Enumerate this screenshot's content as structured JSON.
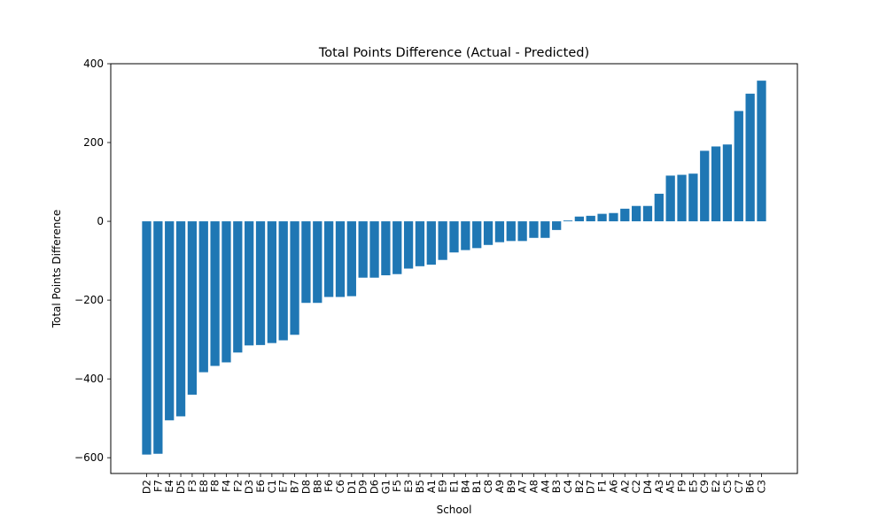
{
  "chart_data": {
    "type": "bar",
    "title": "Total Points Difference (Actual - Predicted)",
    "xlabel": "School",
    "ylabel": "Total Points Difference",
    "ylim": [
      -640,
      400
    ],
    "yticks": [
      400,
      200,
      0,
      -200,
      -400,
      -600
    ],
    "ytick_labels": [
      "400",
      "200",
      "0",
      "−200",
      "−400",
      "−600"
    ],
    "grid": false,
    "bar_color": "#1f77b4",
    "categories": [
      "D2",
      "F7",
      "E4",
      "D5",
      "F3",
      "E8",
      "F8",
      "F4",
      "F2",
      "D3",
      "E6",
      "C1",
      "E7",
      "B7",
      "D8",
      "B8",
      "F6",
      "C6",
      "D1",
      "D9",
      "D6",
      "G1",
      "F5",
      "E3",
      "B5",
      "A1",
      "E9",
      "E1",
      "B4",
      "B1",
      "C8",
      "A9",
      "B9",
      "A7",
      "A8",
      "A4",
      "B3",
      "C4",
      "B2",
      "D7",
      "F1",
      "A6",
      "A2",
      "C2",
      "D4",
      "A3",
      "A5",
      "F9",
      "E5",
      "C9",
      "E2",
      "C5",
      "C7",
      "B6",
      "C3"
    ],
    "values": [
      -592,
      -590,
      -505,
      -495,
      -440,
      -383,
      -367,
      -358,
      -333,
      -315,
      -314,
      -309,
      -302,
      -288,
      -207,
      -207,
      -192,
      -192,
      -190,
      -143,
      -143,
      -137,
      -134,
      -120,
      -114,
      -110,
      -98,
      -79,
      -73,
      -68,
      -60,
      -53,
      -50,
      -50,
      -42,
      -42,
      -22,
      2,
      12,
      14,
      19,
      21,
      32,
      39,
      39,
      70,
      116,
      118,
      121,
      179,
      190,
      195,
      280,
      324,
      357
    ]
  }
}
